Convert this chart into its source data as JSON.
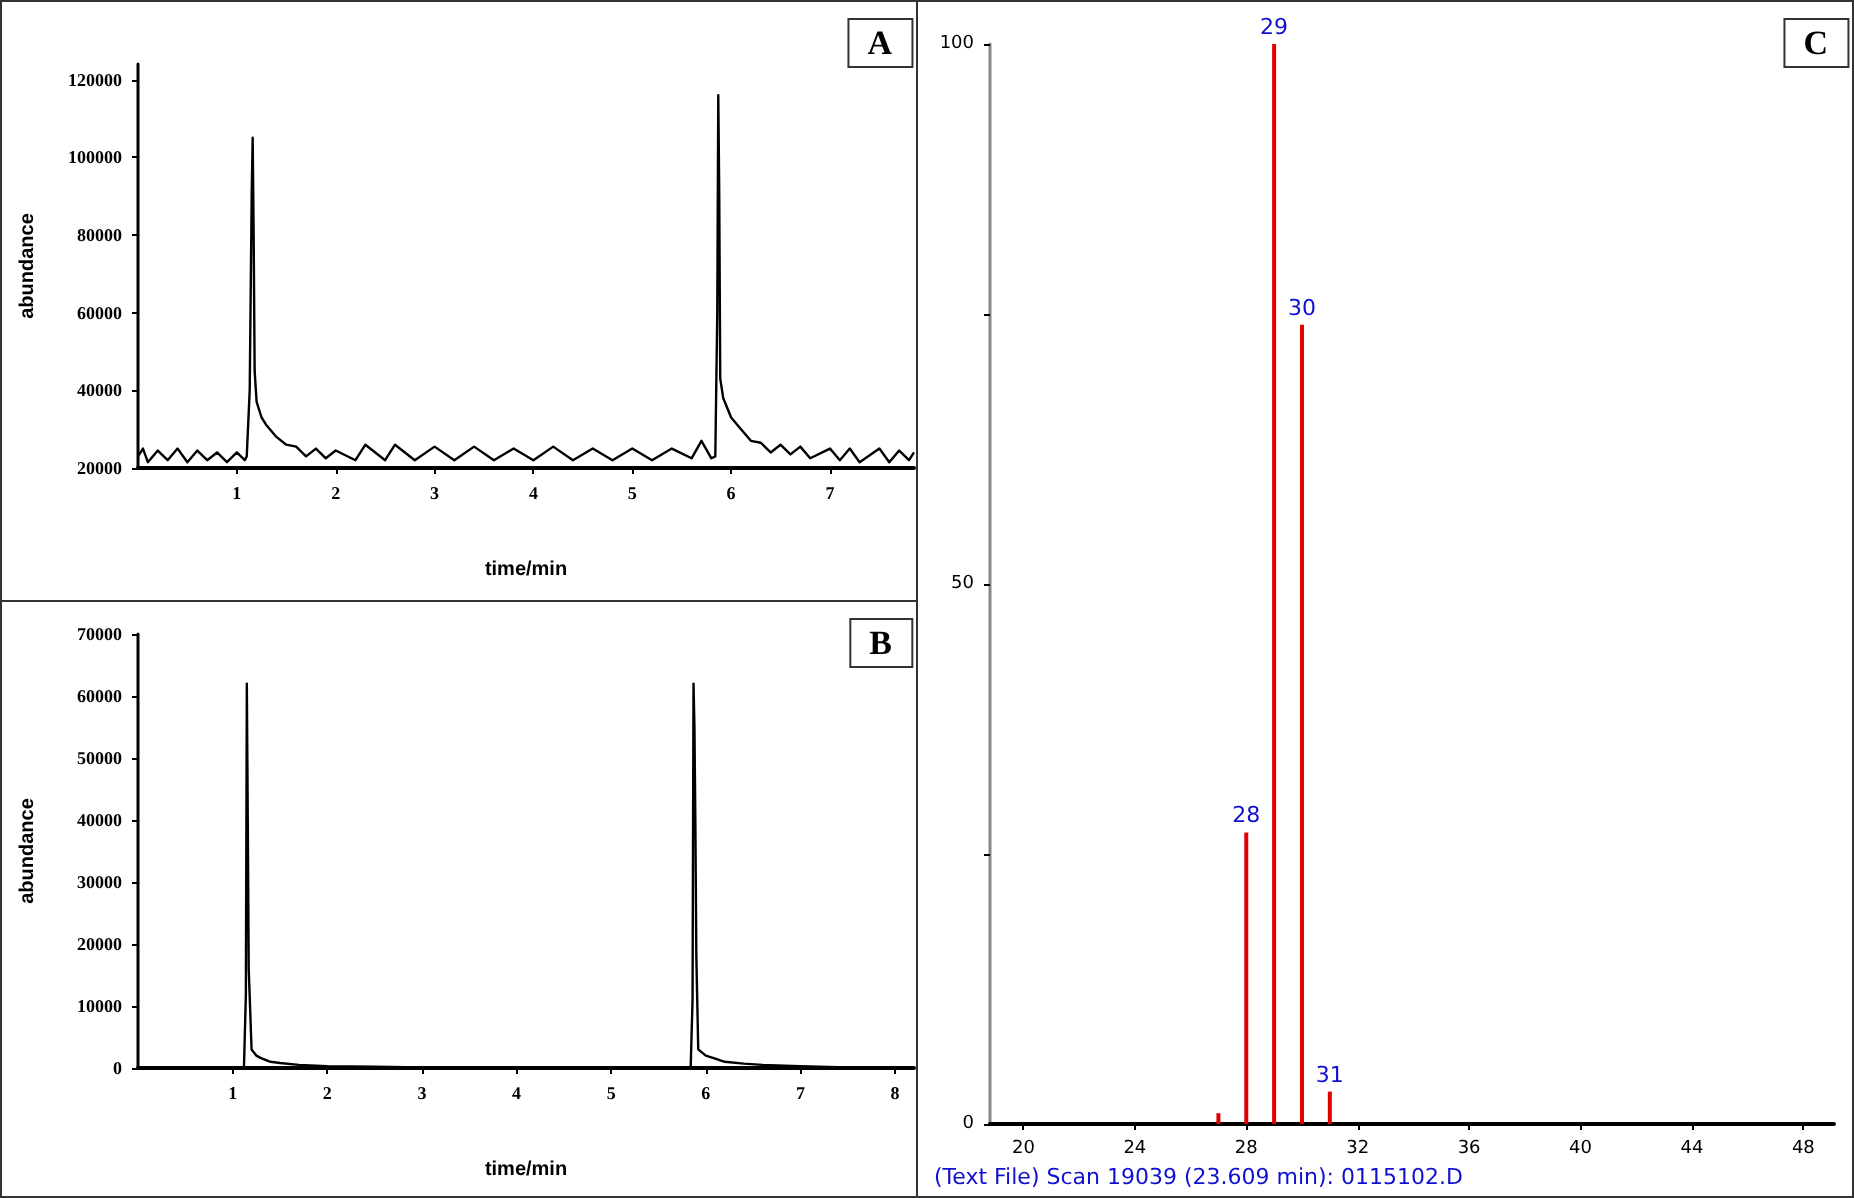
{
  "chart_data": [
    {
      "type": "line",
      "title": "A",
      "xlabel": "time/min",
      "ylabel": "abundance",
      "color": "#000000",
      "xlim": [
        0,
        7.85
      ],
      "xticks": [
        1,
        2,
        3,
        4,
        5,
        6,
        7
      ],
      "ylim": [
        20000,
        124000
      ],
      "yticks": [
        20000,
        40000,
        60000,
        80000,
        100000,
        120000
      ],
      "x": [
        0,
        0.05,
        0.1,
        0.2,
        0.3,
        0.4,
        0.5,
        0.6,
        0.7,
        0.8,
        0.9,
        1.0,
        1.08,
        1.1,
        1.13,
        1.15,
        1.16,
        1.17,
        1.18,
        1.2,
        1.25,
        1.3,
        1.4,
        1.5,
        1.6,
        1.7,
        1.8,
        1.9,
        2.0,
        2.2,
        2.3,
        2.5,
        2.6,
        2.8,
        3.0,
        3.2,
        3.4,
        3.6,
        3.8,
        4.0,
        4.2,
        4.4,
        4.6,
        4.8,
        5.0,
        5.2,
        5.4,
        5.6,
        5.7,
        5.8,
        5.84,
        5.86,
        5.87,
        5.88,
        5.89,
        5.92,
        6.0,
        6.1,
        6.2,
        6.3,
        6.4,
        6.5,
        6.6,
        6.7,
        6.8,
        7.0,
        7.1,
        7.2,
        7.3,
        7.5,
        7.6,
        7.7,
        7.8,
        7.85
      ],
      "values": [
        23000,
        25000,
        21500,
        24500,
        22000,
        25000,
        21500,
        24500,
        22000,
        24000,
        21500,
        24000,
        22000,
        23000,
        40000,
        90000,
        105000,
        80000,
        45000,
        37000,
        33000,
        31000,
        28000,
        26000,
        25500,
        23000,
        25000,
        22500,
        24500,
        22000,
        26000,
        22000,
        26000,
        22000,
        25500,
        22000,
        25500,
        22000,
        25000,
        22000,
        25500,
        22000,
        25000,
        22000,
        25000,
        22000,
        25000,
        22500,
        27000,
        22500,
        23000,
        60000,
        116000,
        90000,
        43000,
        38000,
        33000,
        30000,
        27000,
        26500,
        24000,
        26000,
        23500,
        25500,
        22500,
        25000,
        22000,
        25000,
        21500,
        25000,
        21500,
        24500,
        22000,
        24000
      ]
    },
    {
      "type": "line",
      "title": "B",
      "xlabel": "time/min",
      "ylabel": "abundance",
      "color": "#000000",
      "xlim": [
        0,
        8.2
      ],
      "xticks": [
        1,
        2,
        3,
        4,
        5,
        6,
        7,
        8
      ],
      "ylim": [
        0,
        70000
      ],
      "yticks": [
        0,
        10000,
        20000,
        30000,
        40000,
        50000,
        60000,
        70000
      ],
      "x": [
        0,
        1.1,
        1.12,
        1.14,
        1.15,
        1.16,
        1.17,
        1.2,
        1.25,
        1.3,
        1.4,
        1.5,
        1.7,
        2.0,
        2.5,
        3,
        4,
        5,
        5.8,
        5.84,
        5.86,
        5.87,
        5.88,
        5.89,
        5.9,
        5.92,
        6.0,
        6.1,
        6.2,
        6.4,
        6.6,
        7,
        7.5,
        8,
        8.2
      ],
      "values": [
        0,
        0,
        300,
        12000,
        62000,
        40000,
        16000,
        3000,
        2000,
        1600,
        1000,
        800,
        500,
        300,
        200,
        100,
        100,
        100,
        0,
        0,
        11000,
        62000,
        55000,
        39000,
        18000,
        3000,
        2000,
        1500,
        1000,
        700,
        500,
        300,
        100,
        0,
        0
      ]
    },
    {
      "type": "bar",
      "title": "C",
      "color": "#e00000",
      "xlim": [
        18.8,
        49.1
      ],
      "xticks": [
        20,
        24,
        28,
        32,
        36,
        40,
        44,
        48
      ],
      "ylim": [
        0,
        100
      ],
      "yticks": [
        0,
        {
          "value": 25,
          "label": null
        },
        50,
        {
          "value": 75,
          "label": null
        },
        100
      ],
      "x": [
        27,
        28,
        29,
        30,
        31
      ],
      "values": [
        1,
        27,
        100,
        74,
        3
      ],
      "annotations": [
        {
          "text": "28",
          "x": 28,
          "y": 27
        },
        {
          "text": "29",
          "x": 29,
          "y": 100
        },
        {
          "text": "30",
          "x": 30,
          "y": 74
        },
        {
          "text": "31",
          "x": 31,
          "y": 3
        },
        "(Text File) Scan 19039 (23.609 min): 0115102.D"
      ]
    }
  ]
}
